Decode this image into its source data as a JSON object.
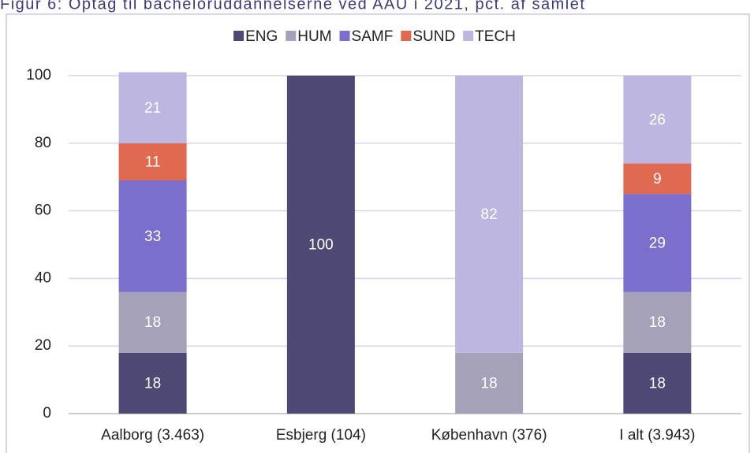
{
  "chart_data": {
    "type": "stacked_bar",
    "title": "Figur 6: Optag til bacheloruddannelserne ved AAU i 2021, pct. af samlet",
    "categories": [
      "Aalborg (3.463)",
      "Esbjerg (104)",
      "København (376)",
      "I alt (3.943)"
    ],
    "series": [
      {
        "name": "ENG",
        "color": "#4e4875",
        "values": [
          18,
          100,
          null,
          18
        ]
      },
      {
        "name": "HUM",
        "color": "#a5a1b8",
        "values": [
          18,
          null,
          18,
          18
        ]
      },
      {
        "name": "SAMF",
        "color": "#7b6fce",
        "values": [
          33,
          null,
          null,
          29
        ]
      },
      {
        "name": "SUND",
        "color": "#e06a50",
        "values": [
          11,
          null,
          null,
          9
        ]
      },
      {
        "name": "TECH",
        "color": "#bcb6e0",
        "values": [
          21,
          null,
          82,
          26
        ]
      }
    ],
    "ylim": [
      0,
      100
    ],
    "yticks": [
      0,
      20,
      40,
      60,
      80,
      100
    ],
    "grid": true,
    "legend": "top"
  }
}
